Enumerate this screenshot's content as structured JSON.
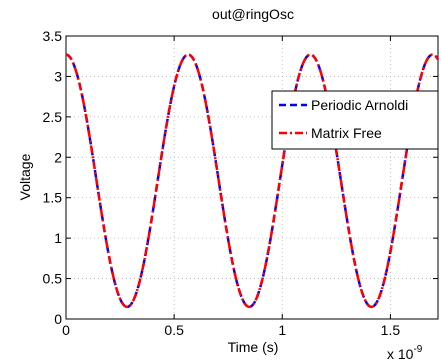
{
  "chart_data": {
    "type": "line",
    "title": "out@ringOsc",
    "xlabel": "Time (s)",
    "ylabel": "Voltage",
    "x_exponent_label": "x 10",
    "x_exponent_power": "-9",
    "xlim": [
      0,
      1.72e-09
    ],
    "ylim": [
      0,
      3.5
    ],
    "xticks": [
      0,
      5e-10,
      1e-09,
      1.5e-09
    ],
    "xtick_labels": [
      "0",
      "0.5",
      "1",
      "1.5"
    ],
    "yticks": [
      0,
      0.5,
      1,
      1.5,
      2,
      2.5,
      3,
      3.5
    ],
    "ytick_labels": [
      "0",
      "0.5",
      "1",
      "1.5",
      "2",
      "2.5",
      "3",
      "3.5"
    ],
    "grid": true,
    "legend_position": "top-right",
    "period": 5.65e-10,
    "vmax": 3.27,
    "vmin": 0.15,
    "series": [
      {
        "name": "Periodic Arnoldi",
        "color": "#0000ff",
        "style": "dashed"
      },
      {
        "name": "Matrix Free",
        "color": "#ff0000",
        "style": "dashdot"
      }
    ]
  }
}
